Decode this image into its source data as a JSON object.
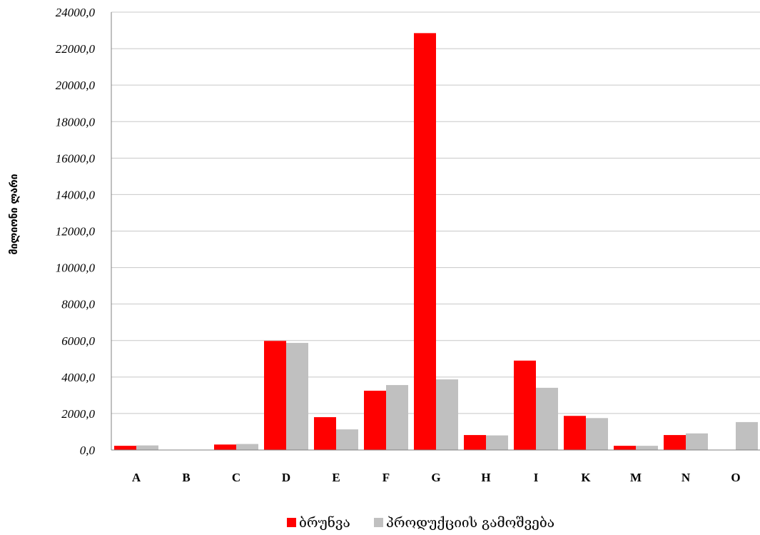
{
  "chart_data": {
    "type": "bar",
    "ylabel": "მილიონი ლარი",
    "xlabel": "",
    "ylim": [
      0,
      24000
    ],
    "ytick_step": 2000,
    "ytick_format": "comma-1-decimal",
    "grid": true,
    "legend_position": "bottom",
    "categories": [
      "A",
      "B",
      "C",
      "D",
      "E",
      "F",
      "G",
      "H",
      "I",
      "K",
      "M",
      "N",
      "O"
    ],
    "series": [
      {
        "name": "ბრუნვა",
        "color": "#ff0000",
        "values": [
          230,
          0,
          300,
          5980,
          1800,
          3250,
          22850,
          820,
          4900,
          1870,
          230,
          820,
          0
        ]
      },
      {
        "name": "პროდუქციის გამოშვება",
        "color": "#c0c0c0",
        "values": [
          250,
          0,
          330,
          5870,
          1130,
          3560,
          3870,
          800,
          3410,
          1750,
          230,
          910,
          1530
        ]
      }
    ]
  }
}
